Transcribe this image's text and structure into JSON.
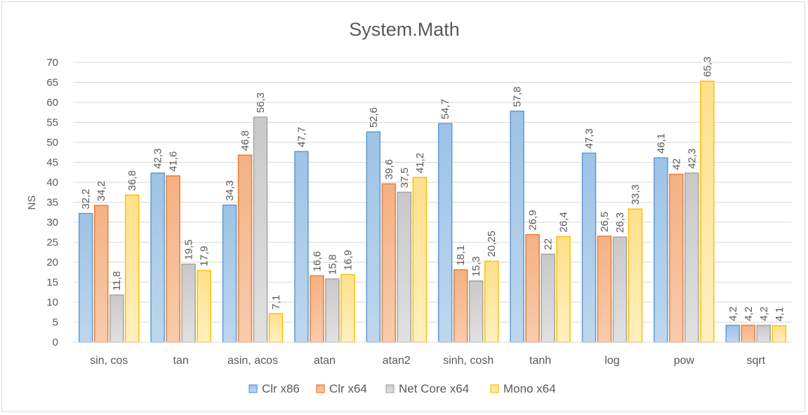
{
  "chart_data": {
    "type": "bar",
    "title": "System.Math",
    "xlabel": "",
    "ylabel": "NS",
    "ylim": [
      0,
      70
    ],
    "ytick_step": 5,
    "grid": true,
    "legend_position": "bottom",
    "categories": [
      "sin, cos",
      "tan",
      "asin, acos",
      "atan",
      "atan2",
      "sinh, cosh",
      "tanh",
      "log",
      "pow",
      "sqrt"
    ],
    "series": [
      {
        "name": "Clr x86",
        "color": "#5b9bd5",
        "fill_light": "#bdd7ee",
        "fill_dark": "#9dc3e6",
        "values": [
          32.2,
          42.3,
          34.3,
          47.7,
          52.6,
          54.7,
          57.8,
          47.3,
          46.1,
          4.2
        ],
        "labels": [
          "32,2",
          "42,3",
          "34,3",
          "47,7",
          "52,6",
          "54,7",
          "57,8",
          "47,3",
          "46,1",
          "4,2"
        ]
      },
      {
        "name": "Clr x64",
        "color": "#ed7d31",
        "fill_light": "#f8cbad",
        "fill_dark": "#f4b183",
        "values": [
          34.2,
          41.6,
          46.8,
          16.6,
          39.6,
          18.1,
          26.9,
          26.5,
          42,
          4.2
        ],
        "labels": [
          "34,2",
          "41,6",
          "46,8",
          "16,6",
          "39,6",
          "18,1",
          "26,9",
          "26,5",
          "42",
          "4,2"
        ]
      },
      {
        "name": "Net Core x64",
        "color": "#a5a5a5",
        "fill_light": "#e0e0e0",
        "fill_dark": "#c9c9c9",
        "values": [
          11.8,
          19.5,
          56.3,
          15.8,
          37.5,
          15.3,
          22,
          26.3,
          42.3,
          4.2
        ],
        "labels": [
          "11,8",
          "19,5",
          "56,3",
          "15,8",
          "37,5",
          "15,3",
          "22",
          "26,3",
          "42,3",
          "4,2"
        ]
      },
      {
        "name": "Mono x64",
        "color": "#ffc000",
        "fill_light": "#fff0c0",
        "fill_dark": "#ffe08a",
        "values": [
          36.8,
          17.9,
          7.1,
          16.9,
          41.2,
          20.25,
          26.4,
          33.3,
          65.3,
          4.1
        ],
        "labels": [
          "36,8",
          "17,9",
          "7,1",
          "16,9",
          "41,2",
          "20,25",
          "26,4",
          "33,3",
          "65,3",
          "4,1"
        ]
      }
    ]
  }
}
